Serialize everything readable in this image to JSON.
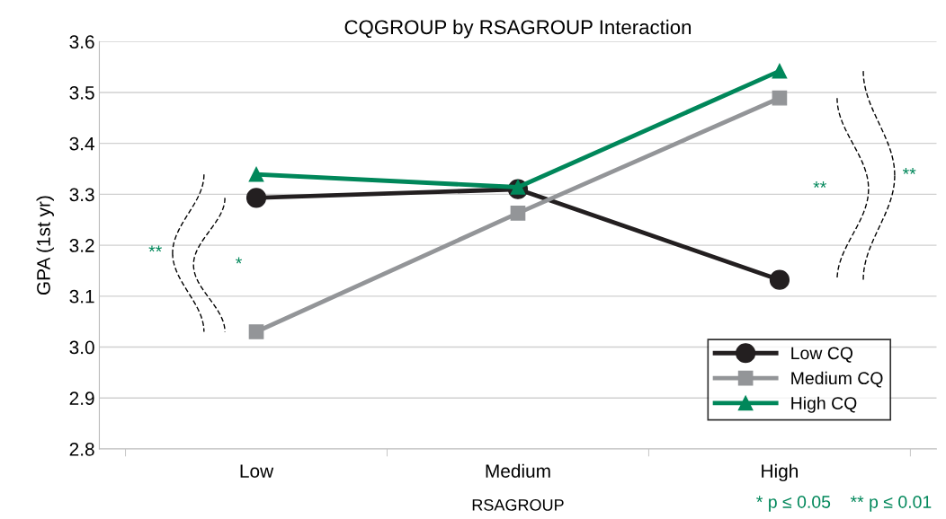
{
  "chart_data": {
    "type": "line",
    "title": "CQGROUP by RSAGROUP Interaction",
    "xlabel": "RSAGROUP",
    "ylabel": "GPA (1st yr)",
    "categories": [
      "Low",
      "Medium",
      "High"
    ],
    "series": [
      {
        "name": "Low CQ",
        "color": "#231f20",
        "marker": "circle",
        "values": [
          3.293,
          3.31,
          3.132
        ]
      },
      {
        "name": "Medium CQ",
        "color": "#939598",
        "marker": "square",
        "values": [
          3.03,
          3.263,
          3.489
        ]
      },
      {
        "name": "High CQ",
        "color": "#00875a",
        "marker": "triangle",
        "values": [
          3.339,
          3.314,
          3.542
        ]
      }
    ],
    "ylim": [
      2.8,
      3.6
    ],
    "yticks": [
      {
        "value": 2.8,
        "label": "2.8"
      },
      {
        "value": 2.9,
        "label": "2.9"
      },
      {
        "value": 3.0,
        "label": "3.0"
      },
      {
        "value": 3.1,
        "label": "3.1"
      },
      {
        "value": 3.2,
        "label": "3.2"
      },
      {
        "value": 3.3,
        "label": "3.3"
      },
      {
        "value": 3.4,
        "label": "3.4"
      },
      {
        "value": 3.5,
        "label": "3.5"
      },
      {
        "value": 3.6,
        "label": "3.6"
      }
    ],
    "grid": "y",
    "legend": "lower right",
    "line_style": "solid",
    "annotations": [
      "**",
      "*",
      "**",
      "**",
      "* p ≤ 0.05    ** p ≤ 0.01"
    ]
  }
}
